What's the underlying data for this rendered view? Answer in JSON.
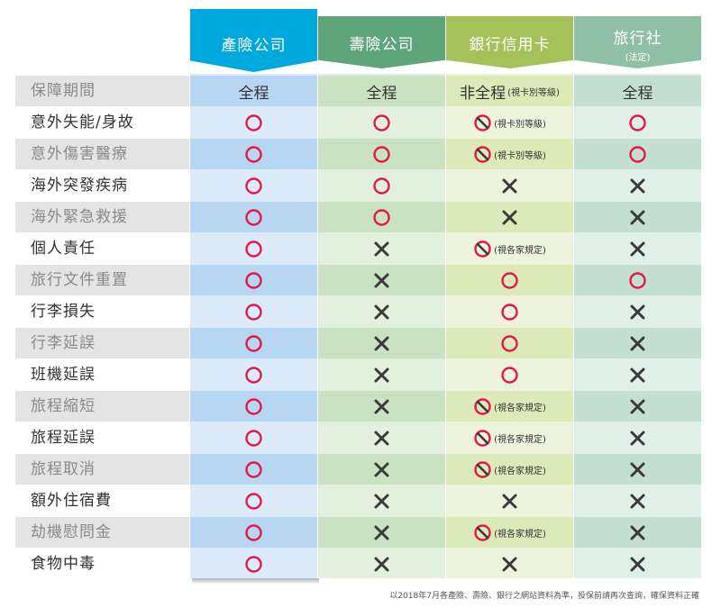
{
  "headers": {
    "col1": "產險公司",
    "col2": "壽險公司",
    "col3": "銀行信用卡",
    "col4": "旅行社",
    "col4_sub": "(法定)"
  },
  "rows": [
    {
      "label": "保障期間",
      "cells": [
        {
          "text": "全程"
        },
        {
          "text": "全程"
        },
        {
          "text": "非全程",
          "note": "(視卡別等級)"
        },
        {
          "text": "全程"
        }
      ]
    },
    {
      "label": "意外失能/身故",
      "cells": [
        {
          "sym": "o"
        },
        {
          "sym": "o"
        },
        {
          "sym": "na",
          "note": "(視卡別等級)"
        },
        {
          "sym": "o"
        }
      ]
    },
    {
      "label": "意外傷害醫療",
      "cells": [
        {
          "sym": "o"
        },
        {
          "sym": "o"
        },
        {
          "sym": "na",
          "note": "(視卡別等級)"
        },
        {
          "sym": "o"
        }
      ]
    },
    {
      "label": "海外突發疾病",
      "cells": [
        {
          "sym": "o"
        },
        {
          "sym": "o"
        },
        {
          "sym": "x"
        },
        {
          "sym": "x"
        }
      ]
    },
    {
      "label": "海外緊急救援",
      "cells": [
        {
          "sym": "o"
        },
        {
          "sym": "o"
        },
        {
          "sym": "x"
        },
        {
          "sym": "x"
        }
      ]
    },
    {
      "label": "個人責任",
      "cells": [
        {
          "sym": "o"
        },
        {
          "sym": "x"
        },
        {
          "sym": "na",
          "note": "(視各家規定)"
        },
        {
          "sym": "x"
        }
      ]
    },
    {
      "label": "旅行文件重置",
      "cells": [
        {
          "sym": "o"
        },
        {
          "sym": "x"
        },
        {
          "sym": "o"
        },
        {
          "sym": "o"
        }
      ]
    },
    {
      "label": "行李損失",
      "cells": [
        {
          "sym": "o"
        },
        {
          "sym": "x"
        },
        {
          "sym": "o"
        },
        {
          "sym": "x"
        }
      ]
    },
    {
      "label": "行李延誤",
      "cells": [
        {
          "sym": "o"
        },
        {
          "sym": "x"
        },
        {
          "sym": "o"
        },
        {
          "sym": "x"
        }
      ]
    },
    {
      "label": "班機延誤",
      "cells": [
        {
          "sym": "o"
        },
        {
          "sym": "x"
        },
        {
          "sym": "o"
        },
        {
          "sym": "x"
        }
      ]
    },
    {
      "label": "旅程縮短",
      "cells": [
        {
          "sym": "o"
        },
        {
          "sym": "x"
        },
        {
          "sym": "na",
          "note": "(視各家規定)"
        },
        {
          "sym": "x"
        }
      ]
    },
    {
      "label": "旅程延誤",
      "cells": [
        {
          "sym": "o"
        },
        {
          "sym": "x"
        },
        {
          "sym": "na",
          "note": "(視各家規定)"
        },
        {
          "sym": "x"
        }
      ]
    },
    {
      "label": "旅程取消",
      "cells": [
        {
          "sym": "o"
        },
        {
          "sym": "x"
        },
        {
          "sym": "na",
          "note": "(視各家規定)"
        },
        {
          "sym": "x"
        }
      ]
    },
    {
      "label": "額外住宿費",
      "cells": [
        {
          "sym": "o"
        },
        {
          "sym": "x"
        },
        {
          "sym": "x"
        },
        {
          "sym": "x"
        }
      ]
    },
    {
      "label": "劫機慰問金",
      "cells": [
        {
          "sym": "o"
        },
        {
          "sym": "x"
        },
        {
          "sym": "na",
          "note": "(視各家規定)"
        },
        {
          "sym": "x"
        }
      ]
    },
    {
      "label": "食物中毒",
      "cells": [
        {
          "sym": "o"
        },
        {
          "sym": "x"
        },
        {
          "sym": "x"
        },
        {
          "sym": "x"
        }
      ]
    }
  ],
  "symbols": {
    "o": {
      "icon": "circle-icon",
      "color": "#e3194a"
    },
    "x": {
      "icon": "cross-icon",
      "color": "#3a3a3a"
    },
    "na": {
      "icon": "prohibited-icon",
      "color": "#e3194a"
    }
  },
  "footer": "以2018年7月各產險、壽險、銀行之網站資料為準，投保前請再次查詢，確保資料正確"
}
